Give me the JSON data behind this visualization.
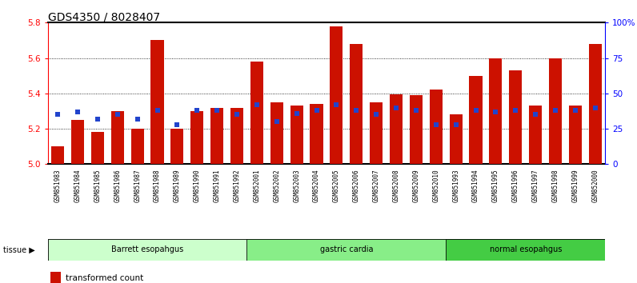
{
  "title": "GDS4350 / 8028407",
  "samples": [
    "GSM851983",
    "GSM851984",
    "GSM851985",
    "GSM851986",
    "GSM851987",
    "GSM851988",
    "GSM851989",
    "GSM851990",
    "GSM851991",
    "GSM851992",
    "GSM852001",
    "GSM852002",
    "GSM852003",
    "GSM852004",
    "GSM852005",
    "GSM852006",
    "GSM852007",
    "GSM852008",
    "GSM852009",
    "GSM852010",
    "GSM851993",
    "GSM851994",
    "GSM851995",
    "GSM851996",
    "GSM851997",
    "GSM851998",
    "GSM851999",
    "GSM852000"
  ],
  "transformed_count": [
    5.1,
    5.25,
    5.18,
    5.3,
    5.2,
    5.7,
    5.2,
    5.3,
    5.32,
    5.32,
    5.58,
    5.35,
    5.33,
    5.34,
    5.78,
    5.68,
    5.35,
    5.395,
    5.39,
    5.42,
    5.28,
    5.5,
    5.6,
    5.53,
    5.33,
    5.6,
    5.33,
    5.68
  ],
  "percentile_rank": [
    35,
    37,
    32,
    35,
    32,
    38,
    28,
    38,
    38,
    35,
    42,
    30,
    36,
    38,
    42,
    38,
    35,
    40,
    38,
    28,
    28,
    38,
    37,
    38,
    35,
    38,
    38,
    40
  ],
  "tissue_groups": [
    {
      "label": "Barrett esopahgus",
      "start": 0,
      "end": 10,
      "color": "#ccffcc"
    },
    {
      "label": "gastric cardia",
      "start": 10,
      "end": 20,
      "color": "#88ee88"
    },
    {
      "label": "normal esopahgus",
      "start": 20,
      "end": 28,
      "color": "#44cc44"
    }
  ],
  "ymin": 5.0,
  "ymax": 5.8,
  "yticks": [
    5.0,
    5.2,
    5.4,
    5.6,
    5.8
  ],
  "right_yticks": [
    0,
    25,
    50,
    75,
    100
  ],
  "bar_color": "#cc1100",
  "marker_color": "#2244cc",
  "title_fontsize": 10,
  "tick_fontsize": 7.5,
  "label_fontsize": 7
}
